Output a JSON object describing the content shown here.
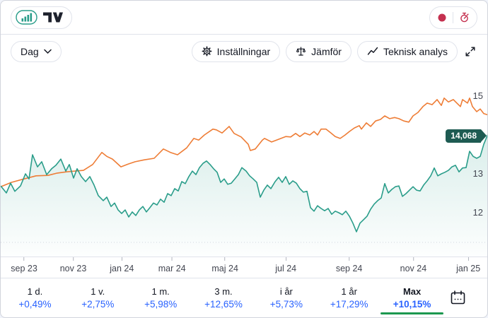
{
  "header": {
    "logo": {
      "chart_icon": "bar-chart-logo-icon",
      "brand_icon": "tradingview-logo"
    },
    "status": {
      "record_icon": "record-dot-icon",
      "timer_icon": "stopwatch-icon"
    }
  },
  "toolbar": {
    "interval_button": {
      "label": "Dag"
    },
    "settings_button": {
      "label": "Inställningar"
    },
    "compare_button": {
      "label": "Jämför"
    },
    "technical_button": {
      "label": "Teknisk analys"
    }
  },
  "chart": {
    "price_badge": "14,068",
    "colors": {
      "line_main": "#2a9d8a",
      "line_compare": "#ee7d36",
      "badge_bg": "#1e5b52",
      "accent_green": "#1c9850",
      "link_blue": "#2962ff",
      "crimson": "#c4304f"
    },
    "y_ticks": [
      {
        "label": "15"
      },
      {
        "label": "13"
      },
      {
        "label": "12"
      }
    ],
    "x_ticks": [
      {
        "label": "sep 23",
        "pos": "4.8%"
      },
      {
        "label": "nov 23",
        "pos": "14.9%"
      },
      {
        "label": "jan 24",
        "pos": "24.9%"
      },
      {
        "label": "mar 24",
        "pos": "35.2%"
      },
      {
        "label": "maj 24",
        "pos": "46.1%"
      },
      {
        "label": "jul 24",
        "pos": "58.6%"
      },
      {
        "label": "sep 24",
        "pos": "71.6%"
      },
      {
        "label": "nov 24",
        "pos": "84.8%"
      },
      {
        "label": "jan 25",
        "pos": "96.1%"
      }
    ]
  },
  "chart_data": {
    "type": "line",
    "x_tick_labels": [
      "sep 23",
      "nov 23",
      "jan 24",
      "mar 24",
      "maj 24",
      "jul 24",
      "sep 24",
      "nov 24",
      "jan 25"
    ],
    "y_tick_values": [
      15,
      13,
      12
    ],
    "ylim": [
      11.2,
      15.45
    ],
    "last_price": 14.068,
    "legend_position": "none",
    "grid": "off",
    "series": [
      {
        "name": "main",
        "color": "#2a9d8a",
        "area_fill": true,
        "points": [
          [
            0,
            12.69
          ],
          [
            8,
            12.51
          ],
          [
            14,
            12.76
          ],
          [
            20,
            12.55
          ],
          [
            28,
            12.69
          ],
          [
            35,
            13.0
          ],
          [
            40,
            12.87
          ],
          [
            45,
            13.49
          ],
          [
            52,
            13.18
          ],
          [
            58,
            13.31
          ],
          [
            65,
            12.98
          ],
          [
            72,
            13.13
          ],
          [
            78,
            13.22
          ],
          [
            85,
            13.38
          ],
          [
            92,
            13.07
          ],
          [
            97,
            13.24
          ],
          [
            103,
            12.89
          ],
          [
            108,
            13.13
          ],
          [
            114,
            12.93
          ],
          [
            120,
            12.8
          ],
          [
            126,
            12.93
          ],
          [
            132,
            12.71
          ],
          [
            138,
            12.44
          ],
          [
            145,
            12.31
          ],
          [
            150,
            12.4
          ],
          [
            156,
            12.16
          ],
          [
            161,
            12.25
          ],
          [
            166,
            12.07
          ],
          [
            171,
            11.98
          ],
          [
            176,
            12.07
          ],
          [
            181,
            11.89
          ],
          [
            186,
            12.02
          ],
          [
            191,
            11.93
          ],
          [
            196,
            12.07
          ],
          [
            201,
            12.16
          ],
          [
            206,
            12.02
          ],
          [
            211,
            12.13
          ],
          [
            216,
            12.25
          ],
          [
            221,
            12.2
          ],
          [
            226,
            12.35
          ],
          [
            231,
            12.27
          ],
          [
            236,
            12.49
          ],
          [
            241,
            12.44
          ],
          [
            246,
            12.62
          ],
          [
            251,
            12.56
          ],
          [
            256,
            12.8
          ],
          [
            261,
            12.75
          ],
          [
            266,
            12.93
          ],
          [
            271,
            13.07
          ],
          [
            276,
            12.98
          ],
          [
            281,
            13.16
          ],
          [
            286,
            13.27
          ],
          [
            291,
            13.33
          ],
          [
            296,
            13.24
          ],
          [
            301,
            13.13
          ],
          [
            306,
            13.04
          ],
          [
            311,
            12.78
          ],
          [
            316,
            12.87
          ],
          [
            321,
            12.73
          ],
          [
            326,
            12.76
          ],
          [
            331,
            12.87
          ],
          [
            336,
            12.98
          ],
          [
            341,
            13.16
          ],
          [
            347,
            13.07
          ],
          [
            352,
            12.95
          ],
          [
            357,
            12.87
          ],
          [
            362,
            12.78
          ],
          [
            367,
            12.4
          ],
          [
            372,
            12.58
          ],
          [
            377,
            12.71
          ],
          [
            382,
            12.62
          ],
          [
            388,
            12.8
          ],
          [
            393,
            12.91
          ],
          [
            398,
            12.78
          ],
          [
            403,
            12.93
          ],
          [
            408,
            12.73
          ],
          [
            413,
            12.82
          ],
          [
            418,
            12.76
          ],
          [
            423,
            12.62
          ],
          [
            428,
            12.53
          ],
          [
            433,
            12.55
          ],
          [
            438,
            12.13
          ],
          [
            443,
            12.04
          ],
          [
            448,
            12.18
          ],
          [
            453,
            12.11
          ],
          [
            458,
            12.05
          ],
          [
            463,
            12.11
          ],
          [
            468,
            11.96
          ],
          [
            473,
            12.04
          ],
          [
            478,
            12.0
          ],
          [
            483,
            11.95
          ],
          [
            488,
            12.04
          ],
          [
            493,
            11.91
          ],
          [
            498,
            11.73
          ],
          [
            503,
            11.51
          ],
          [
            508,
            11.73
          ],
          [
            513,
            11.82
          ],
          [
            518,
            11.91
          ],
          [
            523,
            12.09
          ],
          [
            528,
            12.22
          ],
          [
            533,
            12.31
          ],
          [
            538,
            12.38
          ],
          [
            543,
            12.75
          ],
          [
            548,
            12.51
          ],
          [
            553,
            12.6
          ],
          [
            558,
            12.67
          ],
          [
            563,
            12.69
          ],
          [
            568,
            12.42
          ],
          [
            573,
            12.49
          ],
          [
            578,
            12.58
          ],
          [
            583,
            12.67
          ],
          [
            588,
            12.58
          ],
          [
            593,
            12.56
          ],
          [
            598,
            12.71
          ],
          [
            603,
            12.82
          ],
          [
            608,
            12.95
          ],
          [
            613,
            13.15
          ],
          [
            618,
            12.95
          ],
          [
            623,
            13.0
          ],
          [
            628,
            13.04
          ],
          [
            633,
            13.09
          ],
          [
            638,
            13.18
          ],
          [
            643,
            13.22
          ],
          [
            648,
            13.05
          ],
          [
            653,
            13.15
          ],
          [
            658,
            13.16
          ],
          [
            663,
            13.58
          ],
          [
            668,
            13.45
          ],
          [
            673,
            13.4
          ],
          [
            678,
            13.45
          ],
          [
            683,
            13.76
          ],
          [
            690,
            14.07
          ]
        ]
      },
      {
        "name": "compare",
        "color": "#ee7d36",
        "area_fill": false,
        "points": [
          [
            0,
            12.67
          ],
          [
            15,
            12.78
          ],
          [
            33,
            12.87
          ],
          [
            50,
            12.95
          ],
          [
            67,
            12.96
          ],
          [
            80,
            13.02
          ],
          [
            93,
            13.05
          ],
          [
            105,
            13.07
          ],
          [
            117,
            13.09
          ],
          [
            130,
            13.24
          ],
          [
            143,
            13.55
          ],
          [
            150,
            13.45
          ],
          [
            158,
            13.38
          ],
          [
            170,
            13.18
          ],
          [
            180,
            13.25
          ],
          [
            190,
            13.31
          ],
          [
            203,
            13.36
          ],
          [
            217,
            13.4
          ],
          [
            230,
            13.64
          ],
          [
            240,
            13.55
          ],
          [
            250,
            13.49
          ],
          [
            263,
            13.67
          ],
          [
            273,
            13.91
          ],
          [
            280,
            13.87
          ],
          [
            288,
            14.0
          ],
          [
            300,
            14.15
          ],
          [
            305,
            14.13
          ],
          [
            313,
            14.05
          ],
          [
            323,
            14.22
          ],
          [
            330,
            14.04
          ],
          [
            340,
            13.95
          ],
          [
            350,
            13.76
          ],
          [
            353,
            13.6
          ],
          [
            360,
            13.64
          ],
          [
            370,
            13.87
          ],
          [
            373,
            13.91
          ],
          [
            383,
            13.82
          ],
          [
            390,
            13.87
          ],
          [
            403,
            13.96
          ],
          [
            410,
            13.95
          ],
          [
            417,
            14.04
          ],
          [
            423,
            13.96
          ],
          [
            430,
            14.05
          ],
          [
            437,
            14.0
          ],
          [
            443,
            14.09
          ],
          [
            448,
            14.0
          ],
          [
            453,
            14.15
          ],
          [
            460,
            14.15
          ],
          [
            467,
            14.05
          ],
          [
            473,
            13.96
          ],
          [
            480,
            13.91
          ],
          [
            487,
            14.0
          ],
          [
            493,
            14.09
          ],
          [
            500,
            14.18
          ],
          [
            507,
            14.24
          ],
          [
            510,
            14.15
          ],
          [
            517,
            14.31
          ],
          [
            523,
            14.22
          ],
          [
            530,
            14.36
          ],
          [
            537,
            14.4
          ],
          [
            543,
            14.49
          ],
          [
            550,
            14.42
          ],
          [
            557,
            14.45
          ],
          [
            563,
            14.42
          ],
          [
            570,
            14.36
          ],
          [
            577,
            14.33
          ],
          [
            583,
            14.49
          ],
          [
            590,
            14.58
          ],
          [
            597,
            14.73
          ],
          [
            603,
            14.82
          ],
          [
            610,
            14.78
          ],
          [
            617,
            14.91
          ],
          [
            623,
            14.76
          ],
          [
            627,
            14.95
          ],
          [
            633,
            14.85
          ],
          [
            640,
            14.91
          ],
          [
            645,
            14.82
          ],
          [
            650,
            14.73
          ],
          [
            653,
            14.91
          ],
          [
            660,
            14.82
          ],
          [
            663,
            14.95
          ],
          [
            667,
            14.73
          ],
          [
            673,
            14.6
          ],
          [
            678,
            14.67
          ],
          [
            683,
            14.55
          ],
          [
            690,
            14.51
          ]
        ]
      }
    ]
  },
  "footer": {
    "tabs": [
      {
        "label": "1 d.",
        "change": "+0,49%"
      },
      {
        "label": "1 v.",
        "change": "+2,75%"
      },
      {
        "label": "1 m.",
        "change": "+5,98%"
      },
      {
        "label": "3 m.",
        "change": "+12,65%"
      },
      {
        "label": "i år",
        "change": "+5,73%"
      },
      {
        "label": "1 år",
        "change": "+17,29%"
      },
      {
        "label": "Max",
        "change": "+10,15%",
        "active": true
      }
    ],
    "calendar_icon": "calendar-icon"
  }
}
